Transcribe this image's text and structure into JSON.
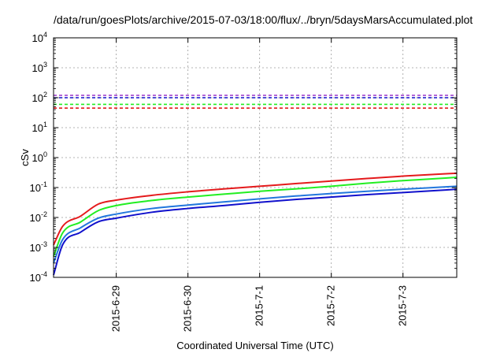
{
  "chart_data": {
    "type": "line",
    "title": "/data/run/goesPlots/archive/2015-07-03/18:00/flux/../bryn/5daysMarsAccumulated.plot",
    "xlabel": "Coordinated Universal Time (UTC)",
    "ylabel": "cSv",
    "yscale": "log",
    "ylim": [
      0.0001,
      10000
    ],
    "y_ticks": [
      {
        "value": 0.0001,
        "base": "10",
        "exp": "-4"
      },
      {
        "value": 0.001,
        "base": "10",
        "exp": "-3"
      },
      {
        "value": 0.01,
        "base": "10",
        "exp": "-2"
      },
      {
        "value": 0.1,
        "base": "10",
        "exp": "-1"
      },
      {
        "value": 1,
        "base": "10",
        "exp": "0"
      },
      {
        "value": 10,
        "base": "10",
        "exp": "1"
      },
      {
        "value": 100,
        "base": "10",
        "exp": "2"
      },
      {
        "value": 1000,
        "base": "10",
        "exp": "3"
      },
      {
        "value": 10000,
        "base": "10",
        "exp": "4"
      }
    ],
    "xlim": [
      "2015-06-28T03:00",
      "2015-07-03T18:00"
    ],
    "x_ticks": [
      "2015-6-29",
      "2015-6-30",
      "2015-7-1",
      "2015-7-2",
      "2015-7-3"
    ],
    "grid": true,
    "legend": "none",
    "x": [
      "2015-06-28T03:00",
      "2015-06-28T06:00",
      "2015-06-28T12:00",
      "2015-06-28T18:00",
      "2015-06-29T00:00",
      "2015-06-29T12:00",
      "2015-06-30T00:00",
      "2015-06-30T12:00",
      "2015-07-01T00:00",
      "2015-07-01T12:00",
      "2015-07-02T00:00",
      "2015-07-02T12:00",
      "2015-07-03T00:00",
      "2015-07-03T12:00",
      "2015-07-03T18:00"
    ],
    "series": [
      {
        "color": "#e41a1c",
        "values": [
          0.0012,
          0.005,
          0.011,
          0.028,
          0.038,
          0.055,
          0.072,
          0.09,
          0.11,
          0.135,
          0.165,
          0.2,
          0.24,
          0.28,
          0.3
        ]
      },
      {
        "color": "#22ee22",
        "values": [
          0.0005,
          0.003,
          0.007,
          0.017,
          0.025,
          0.037,
          0.048,
          0.06,
          0.075,
          0.09,
          0.11,
          0.14,
          0.17,
          0.2,
          0.22
        ]
      },
      {
        "color": "#2277dd",
        "values": [
          0.0003,
          0.0018,
          0.0045,
          0.0095,
          0.013,
          0.02,
          0.026,
          0.033,
          0.042,
          0.052,
          0.063,
          0.075,
          0.088,
          0.102,
          0.11
        ]
      },
      {
        "color": "#1010cc",
        "values": [
          0.00012,
          0.0012,
          0.0032,
          0.0072,
          0.0095,
          0.015,
          0.02,
          0.025,
          0.032,
          0.04,
          0.048,
          0.058,
          0.068,
          0.08,
          0.088
        ]
      }
    ],
    "reference_lines": [
      {
        "color": "#9933cc",
        "value": 120
      },
      {
        "color": "#1010cc",
        "value": 100
      },
      {
        "color": "#22ee22",
        "value": 60
      },
      {
        "color": "#e41a1c",
        "value": 45
      }
    ]
  }
}
